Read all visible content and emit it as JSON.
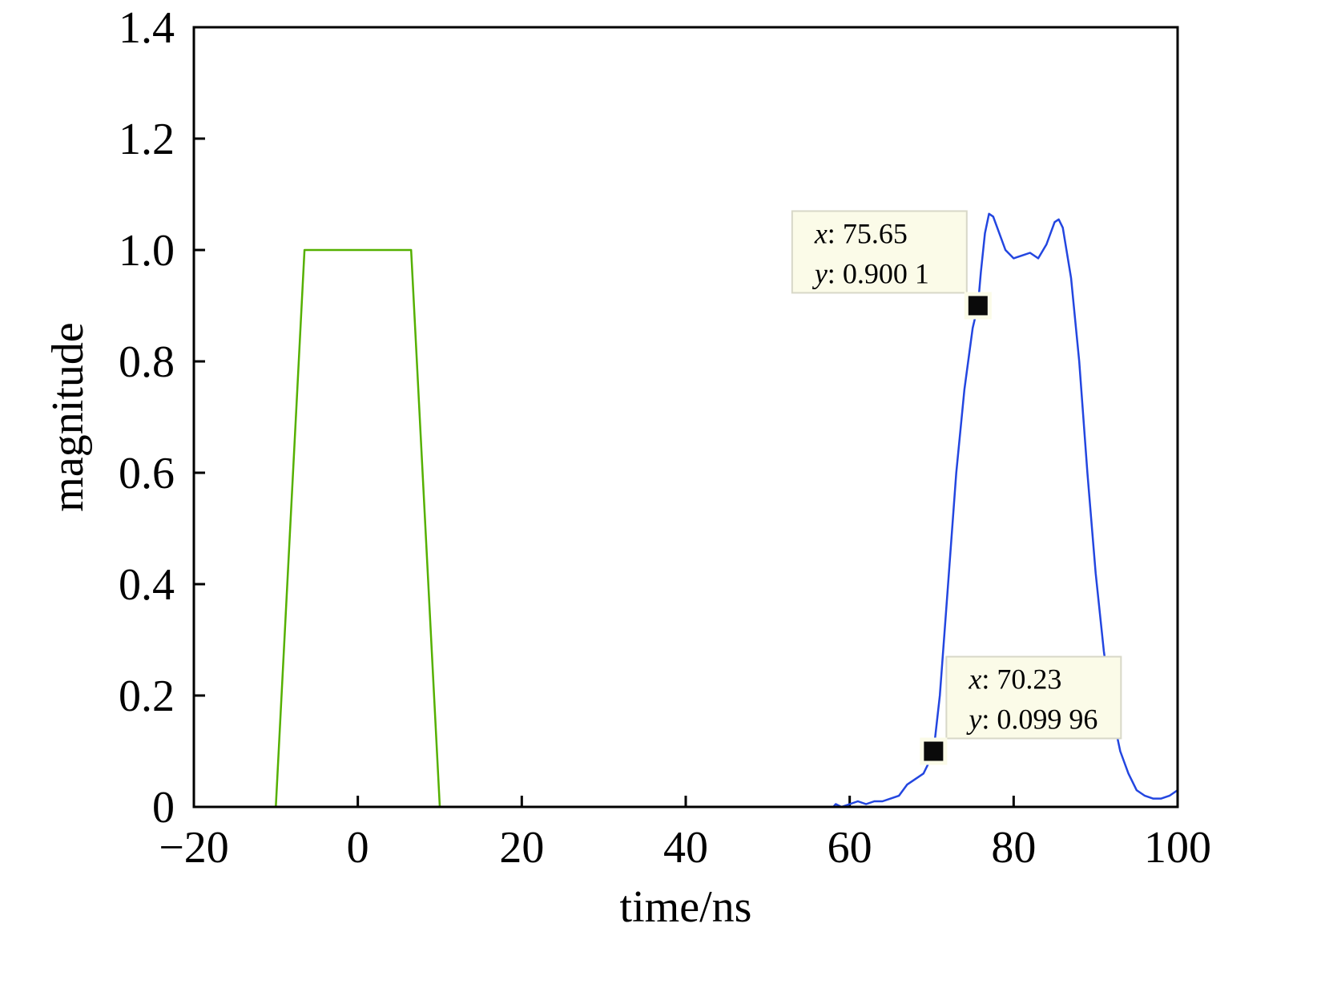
{
  "chart_data": {
    "type": "line",
    "title": "",
    "xlabel": "time/ns",
    "ylabel": "magnitude",
    "xlim": [
      -20,
      100
    ],
    "ylim": [
      0,
      1.4
    ],
    "x_ticks": [
      -20,
      0,
      20,
      40,
      60,
      80,
      100
    ],
    "x_tick_labels": [
      "−20",
      "0",
      "20",
      "40",
      "60",
      "80",
      "100"
    ],
    "y_ticks": [
      0,
      0.2,
      0.4,
      0.6,
      0.8,
      1.0,
      1.2,
      1.4
    ],
    "y_tick_labels": [
      "0",
      "0.2",
      "0.4",
      "0.6",
      "0.8",
      "1.0",
      "1.2",
      "1.4"
    ],
    "grid": false,
    "legend": "none",
    "series": [
      {
        "color": "#55b000",
        "x": [
          -20,
          -10,
          -6.5,
          6.5,
          10,
          100
        ],
        "y": [
          0,
          0,
          1.0,
          1.0,
          0,
          0
        ]
      },
      {
        "color": "#2346e0",
        "x": [
          -20,
          58,
          58.3,
          59,
          60,
          61,
          62,
          63,
          64,
          65,
          66,
          67,
          68,
          69,
          70,
          70.23,
          71,
          72,
          73,
          74,
          75,
          75.65,
          76,
          76.5,
          77,
          77.5,
          78,
          79,
          80,
          81,
          82,
          83,
          84,
          85,
          85.5,
          86,
          87,
          88,
          89,
          90,
          91,
          92,
          93,
          94,
          95,
          96,
          97,
          98,
          99,
          100
        ],
        "y": [
          0,
          0,
          0.005,
          0,
          0.005,
          0.01,
          0.005,
          0.01,
          0.01,
          0.015,
          0.02,
          0.04,
          0.05,
          0.06,
          0.09,
          0.09996,
          0.2,
          0.4,
          0.6,
          0.75,
          0.86,
          0.9001,
          0.96,
          1.03,
          1.065,
          1.06,
          1.04,
          1.0,
          0.985,
          0.99,
          0.995,
          0.985,
          1.01,
          1.05,
          1.055,
          1.04,
          0.95,
          0.8,
          0.6,
          0.42,
          0.28,
          0.17,
          0.1,
          0.06,
          0.03,
          0.02,
          0.015,
          0.015,
          0.02,
          0.03
        ]
      }
    ],
    "annotations": [
      {
        "x": 75.65,
        "y": 0.9001,
        "x_text": "75.65",
        "y_text": "0.900 1",
        "placement": "upper-left"
      },
      {
        "x": 70.23,
        "y": 0.09996,
        "x_text": "70.23",
        "y_text": "0.099 96",
        "placement": "upper-right"
      }
    ],
    "annotation_var_x": "x",
    "annotation_var_y": "y",
    "annotation_box_color": "#fbfbe8"
  }
}
